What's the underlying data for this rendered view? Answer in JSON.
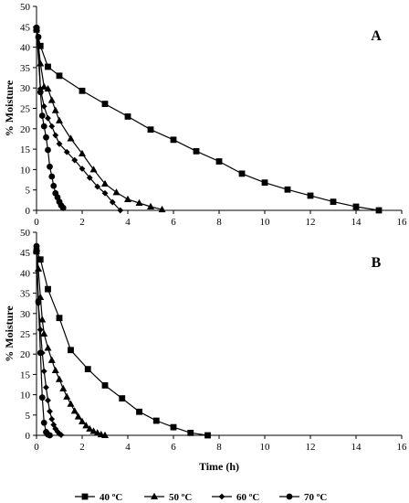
{
  "chart_data": [
    {
      "panel": "A",
      "type": "line",
      "xlabel": "",
      "ylabel": "% Moisture",
      "xlim": [
        0,
        16
      ],
      "ylim": [
        0,
        50
      ],
      "xticks": [
        0,
        2,
        4,
        6,
        8,
        10,
        12,
        14,
        16
      ],
      "yticks": [
        0,
        5,
        10,
        15,
        20,
        25,
        30,
        35,
        40,
        45,
        50
      ],
      "grid": false,
      "series": [
        {
          "name": "40 ºC",
          "marker": "square",
          "x": [
            0,
            0.17,
            0.5,
            1,
            2,
            3,
            4,
            5,
            6,
            7,
            8,
            9,
            10,
            11,
            12,
            13,
            14,
            15
          ],
          "y": [
            44.3,
            40.3,
            35.2,
            33.0,
            29.3,
            26.1,
            23.0,
            19.8,
            17.3,
            14.5,
            12.0,
            9.0,
            6.8,
            5.1,
            3.6,
            2.1,
            0.9,
            0.0
          ]
        },
        {
          "name": "50 ºC",
          "marker": "triangle",
          "x": [
            0,
            0.17,
            0.33,
            0.5,
            0.67,
            0.83,
            1,
            1.5,
            2,
            2.5,
            3,
            3.5,
            4,
            4.5,
            5,
            5.5
          ],
          "y": [
            44.7,
            36.0,
            30.3,
            29.8,
            27.0,
            24.5,
            22.0,
            17.6,
            13.9,
            10.0,
            6.5,
            4.4,
            2.7,
            1.8,
            0.9,
            0.2
          ]
        },
        {
          "name": "60 ºC",
          "marker": "diamond",
          "x": [
            0,
            0.17,
            0.33,
            0.5,
            0.67,
            0.83,
            1,
            1.33,
            1.67,
            2,
            2.33,
            2.67,
            3,
            3.33,
            3.67
          ],
          "y": [
            44.5,
            29.8,
            25.5,
            22.6,
            20.6,
            18.4,
            16.3,
            14.3,
            12.3,
            10.2,
            8.0,
            5.8,
            4.2,
            2.0,
            0.0
          ]
        },
        {
          "name": "70 ºC",
          "marker": "circle",
          "x": [
            0,
            0.08,
            0.17,
            0.25,
            0.33,
            0.42,
            0.5,
            0.58,
            0.67,
            0.75,
            0.83,
            0.92,
            1,
            1.08,
            1.17
          ],
          "y": [
            44.8,
            42.5,
            29.0,
            23.2,
            20.6,
            17.9,
            14.8,
            10.7,
            8.3,
            6.0,
            4.2,
            3.2,
            2.1,
            1.2,
            0.6
          ]
        }
      ],
      "annotation": "A"
    },
    {
      "panel": "B",
      "type": "line",
      "xlabel": "Time (h)",
      "ylabel": "% Moisture",
      "xlim": [
        0,
        16
      ],
      "ylim": [
        0,
        50
      ],
      "xticks": [
        0,
        2,
        4,
        6,
        8,
        10,
        12,
        14,
        16
      ],
      "yticks": [
        0,
        5,
        10,
        15,
        20,
        25,
        30,
        35,
        40,
        45,
        50
      ],
      "grid": false,
      "series": [
        {
          "name": "40 ºC",
          "marker": "square",
          "x": [
            0,
            0.17,
            0.5,
            1,
            1.5,
            2.25,
            3,
            3.75,
            4.5,
            5.25,
            6,
            6.75,
            7.5
          ],
          "y": [
            45.3,
            43.3,
            36.0,
            28.9,
            21.0,
            16.3,
            12.3,
            9.1,
            5.8,
            3.6,
            2.0,
            0.6,
            0.0
          ]
        },
        {
          "name": "50 ºC",
          "marker": "triangle",
          "x": [
            0,
            0.08,
            0.17,
            0.25,
            0.33,
            0.5,
            0.67,
            0.83,
            1,
            1.17,
            1.33,
            1.5,
            1.67,
            1.83,
            2,
            2.17,
            2.33,
            2.5,
            2.67,
            2.83,
            3
          ],
          "y": [
            46.0,
            41.0,
            34.0,
            28.5,
            25.0,
            21.5,
            18.5,
            16.0,
            13.8,
            11.5,
            9.5,
            7.7,
            6.0,
            4.6,
            3.4,
            2.4,
            1.6,
            1.0,
            0.6,
            0.2,
            0.0
          ]
        },
        {
          "name": "60 ºC",
          "marker": "diamond",
          "x": [
            0,
            0.08,
            0.17,
            0.25,
            0.33,
            0.42,
            0.5,
            0.58,
            0.67,
            0.75,
            0.83,
            0.92,
            1,
            1.08
          ],
          "y": [
            46.2,
            32.5,
            26.0,
            20.3,
            15.8,
            11.8,
            8.6,
            5.9,
            4.0,
            2.6,
            1.6,
            0.9,
            0.4,
            0.1
          ]
        },
        {
          "name": "70 ºC",
          "marker": "circle",
          "x": [
            0,
            0.08,
            0.17,
            0.25,
            0.33,
            0.42,
            0.5,
            0.58
          ],
          "y": [
            46.6,
            33.0,
            20.3,
            9.3,
            3.1,
            0.8,
            0.2,
            0.0
          ]
        }
      ],
      "annotation": "B"
    }
  ],
  "legend": {
    "placement": "bottom",
    "entries": [
      "40 ºC",
      "50 ºC",
      "60 ºC",
      "70 ºC"
    ]
  }
}
